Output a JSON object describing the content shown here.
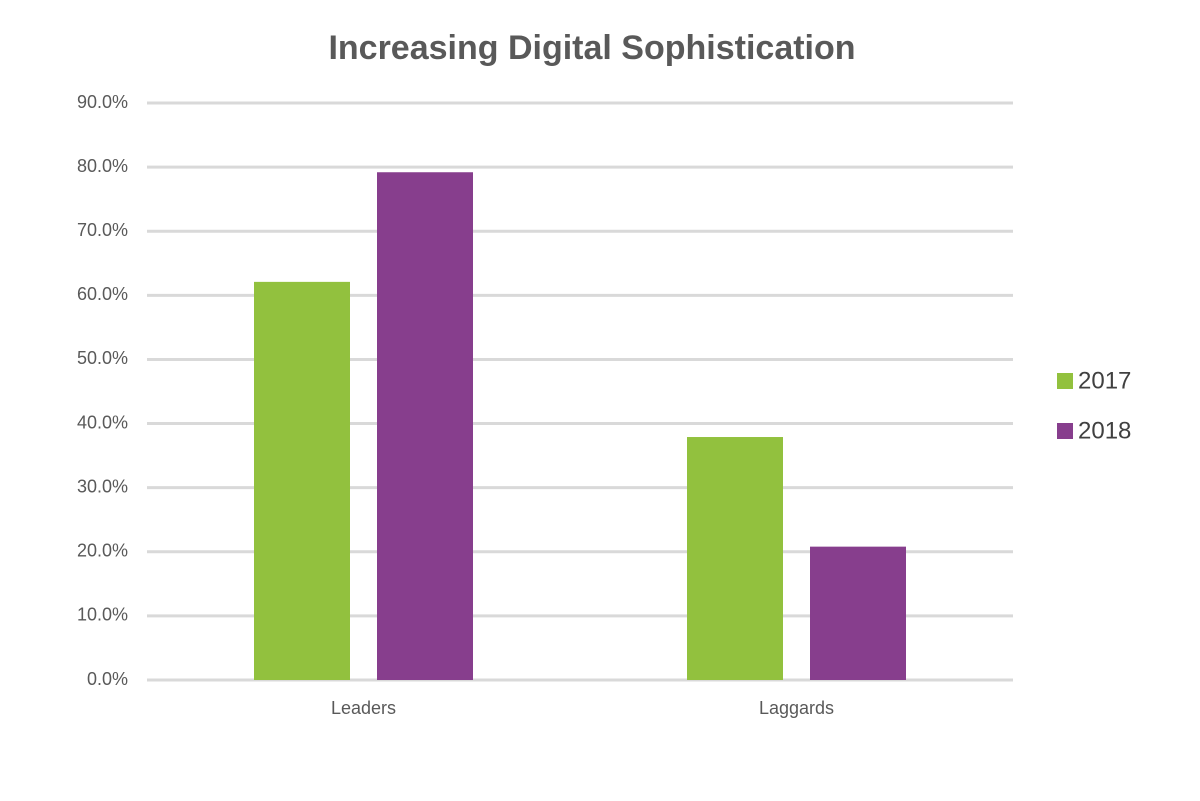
{
  "chart_data": {
    "type": "bar",
    "title": "Increasing Digital Sophistication",
    "categories": [
      "Leaders",
      "Laggards"
    ],
    "series": [
      {
        "name": "2017",
        "color": "#92c13e",
        "values": [
          62.1,
          37.9
        ]
      },
      {
        "name": "2018",
        "color": "#873e8d",
        "values": [
          79.2,
          20.8
        ]
      }
    ],
    "ylim": [
      0,
      90
    ],
    "yticks": [
      {
        "value": 0,
        "label": "0.0%"
      },
      {
        "value": 10,
        "label": "10.0%"
      },
      {
        "value": 20,
        "label": "20.0%"
      },
      {
        "value": 30,
        "label": "30.0%"
      },
      {
        "value": 40,
        "label": "40.0%"
      },
      {
        "value": 50,
        "label": "50.0%"
      },
      {
        "value": 60,
        "label": "60.0%"
      },
      {
        "value": 70,
        "label": "70.0%"
      },
      {
        "value": 80,
        "label": "80.0%"
      },
      {
        "value": 90,
        "label": "90.0%"
      }
    ],
    "grid": true,
    "legend": "right"
  }
}
